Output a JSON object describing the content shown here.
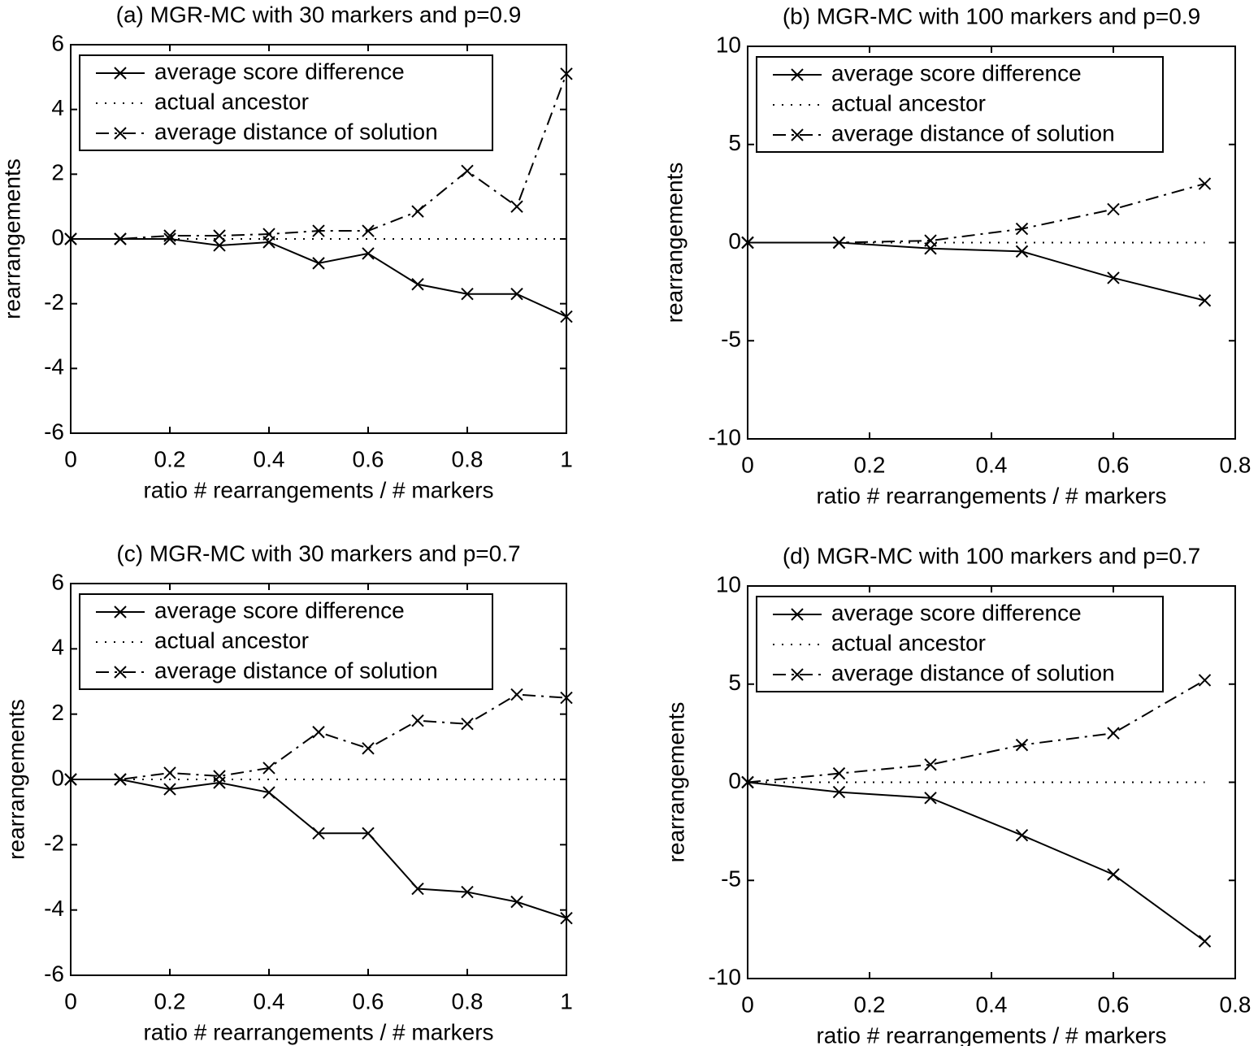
{
  "chart_data": [
    {
      "type": "line",
      "title": "(a)  MGR-MC with 30 markers and p=0.9",
      "xlabel": "ratio # rearrangements / # markers",
      "ylabel": "rearrangements",
      "x": [
        0,
        0.1,
        0.2,
        0.3,
        0.4,
        0.5,
        0.6,
        0.7,
        0.8,
        0.9,
        1
      ],
      "series": [
        {
          "name": "average score difference",
          "color": "#000000",
          "linestyle": "solid",
          "marker": "x",
          "values": [
            0,
            0,
            0,
            -0.2,
            -0.1,
            -0.75,
            -0.45,
            -1.4,
            -1.7,
            -1.7,
            -2.4
          ]
        },
        {
          "name": "actual ancestor",
          "color": "#000000",
          "linestyle": "dotted",
          "marker": "none",
          "values": [
            0,
            0,
            0,
            0,
            0,
            0,
            0,
            0,
            0,
            0,
            0
          ]
        },
        {
          "name": "average distance of solution",
          "color": "#000000",
          "linestyle": "dashdot",
          "marker": "x",
          "values": [
            0,
            0,
            0.1,
            0.1,
            0.15,
            0.25,
            0.25,
            0.85,
            2.1,
            1.0,
            5.1
          ]
        }
      ],
      "xlim": [
        0,
        1
      ],
      "xticks": [
        0,
        0.2,
        0.4,
        0.6,
        0.8,
        1
      ],
      "ylim": [
        -6,
        6
      ],
      "yticks": [
        -6,
        -4,
        -2,
        0,
        2,
        4,
        6
      ],
      "grid": false,
      "legend": "upper left"
    },
    {
      "type": "line",
      "title": "(b)  MGR-MC with 100 markers and p=0.9",
      "xlabel": "ratio # rearrangements / # markers",
      "ylabel": "rearrangements",
      "x": [
        0,
        0.15,
        0.3,
        0.45,
        0.6,
        0.75
      ],
      "series": [
        {
          "name": "average score difference",
          "color": "#000000",
          "linestyle": "solid",
          "marker": "x",
          "values": [
            0,
            0,
            -0.3,
            -0.45,
            -1.8,
            -2.95
          ]
        },
        {
          "name": "actual ancestor",
          "color": "#000000",
          "linestyle": "dotted",
          "marker": "none",
          "values": [
            0,
            0,
            0,
            0,
            0,
            0
          ]
        },
        {
          "name": "average distance of solution",
          "color": "#000000",
          "linestyle": "dashdot",
          "marker": "x",
          "values": [
            0,
            0,
            0.1,
            0.7,
            1.7,
            3.0
          ]
        }
      ],
      "xlim": [
        0,
        0.8
      ],
      "xticks": [
        0,
        0.2,
        0.4,
        0.6,
        0.8
      ],
      "ylim": [
        -10,
        10
      ],
      "yticks": [
        -10,
        -5,
        0,
        5,
        10
      ],
      "grid": false,
      "legend": "upper left"
    },
    {
      "type": "line",
      "title": "(c)  MGR-MC with 30 markers and p=0.7",
      "xlabel": "ratio # rearrangements / # markers",
      "ylabel": "rearrangements",
      "x": [
        0,
        0.1,
        0.2,
        0.3,
        0.4,
        0.5,
        0.6,
        0.7,
        0.8,
        0.9,
        1
      ],
      "series": [
        {
          "name": "average score difference",
          "color": "#000000",
          "linestyle": "solid",
          "marker": "x",
          "values": [
            0,
            0,
            -0.3,
            -0.1,
            -0.4,
            -1.65,
            -1.65,
            -3.35,
            -3.45,
            -3.75,
            -4.25
          ]
        },
        {
          "name": "actual ancestor",
          "color": "#000000",
          "linestyle": "dotted",
          "marker": "none",
          "values": [
            0,
            0,
            0,
            0,
            0,
            0,
            0,
            0,
            0,
            0,
            0
          ]
        },
        {
          "name": "average distance of solution",
          "color": "#000000",
          "linestyle": "dashdot",
          "marker": "x",
          "values": [
            0,
            0,
            0.2,
            0.1,
            0.35,
            1.45,
            0.95,
            1.8,
            1.7,
            2.6,
            2.5
          ]
        }
      ],
      "xlim": [
        0,
        1
      ],
      "xticks": [
        0,
        0.2,
        0.4,
        0.6,
        0.8,
        1
      ],
      "ylim": [
        -6,
        6
      ],
      "yticks": [
        -6,
        -4,
        -2,
        0,
        2,
        4,
        6
      ],
      "grid": false,
      "legend": "upper left"
    },
    {
      "type": "line",
      "title": "(d)  MGR-MC with 100 markers and p=0.7",
      "xlabel": "ratio # rearrangements / # markers",
      "ylabel": "rearrangements",
      "x": [
        0,
        0.15,
        0.3,
        0.45,
        0.6,
        0.75
      ],
      "series": [
        {
          "name": "average score difference",
          "color": "#000000",
          "linestyle": "solid",
          "marker": "x",
          "values": [
            0,
            -0.5,
            -0.8,
            -2.7,
            -4.7,
            -8.1
          ]
        },
        {
          "name": "actual ancestor",
          "color": "#000000",
          "linestyle": "dotted",
          "marker": "none",
          "values": [
            0,
            0,
            0,
            0,
            0,
            0
          ]
        },
        {
          "name": "average distance of solution",
          "color": "#000000",
          "linestyle": "dashdot",
          "marker": "x",
          "values": [
            0,
            0.45,
            0.9,
            1.9,
            2.5,
            5.2
          ]
        }
      ],
      "xlim": [
        0,
        0.8
      ],
      "xticks": [
        0,
        0.2,
        0.4,
        0.6,
        0.8
      ],
      "ylim": [
        -10,
        10
      ],
      "yticks": [
        -10,
        -5,
        0,
        5,
        10
      ],
      "grid": false,
      "legend": "upper left"
    }
  ]
}
